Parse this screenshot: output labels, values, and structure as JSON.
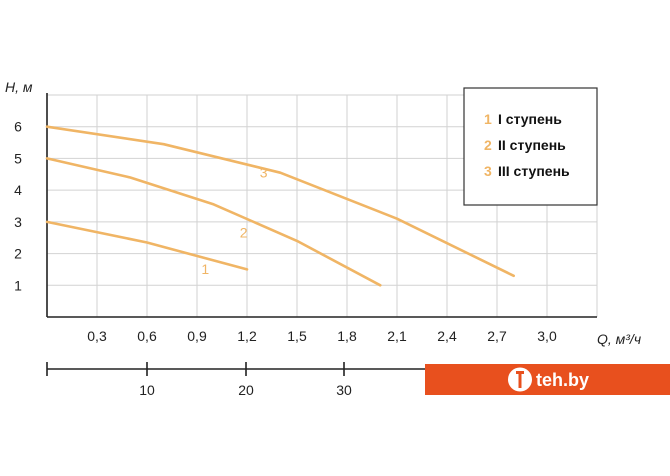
{
  "chart_data": {
    "type": "line",
    "ylabel": "H, м",
    "xlabel": "Q, м³/ч",
    "x_ticks": [
      "0,3",
      "0,6",
      "0,9",
      "1,2",
      "1,5",
      "1,8",
      "2,1",
      "2,4",
      "2,7",
      "3,0"
    ],
    "y_ticks": [
      "1",
      "2",
      "3",
      "4",
      "5",
      "6"
    ],
    "xlim": [
      0,
      3.3
    ],
    "ylim": [
      0,
      7
    ],
    "grid": true,
    "legend_position": "top-right",
    "curve_color": "#f0b565",
    "series": [
      {
        "name": "I ступень",
        "label": "1",
        "x": [
          0,
          0.6,
          1.2
        ],
        "y": [
          3.0,
          2.35,
          1.5
        ]
      },
      {
        "name": "II ступень",
        "label": "2",
        "x": [
          0,
          0.5,
          1.0,
          1.5,
          2.0
        ],
        "y": [
          5.0,
          4.4,
          3.55,
          2.4,
          1.0
        ]
      },
      {
        "name": "III ступень",
        "label": "3",
        "x": [
          0,
          0.7,
          1.4,
          2.1,
          2.8
        ],
        "y": [
          6.0,
          5.45,
          4.55,
          3.1,
          1.3
        ]
      }
    ],
    "secondary_axis": {
      "ticks": [
        "10",
        "20",
        "30"
      ]
    }
  },
  "watermark": {
    "text": "teh.by",
    "bg_color": "#e8501e"
  }
}
